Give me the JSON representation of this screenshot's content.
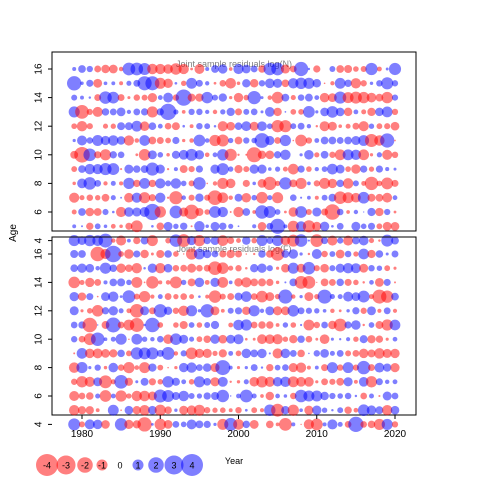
{
  "chart_data": {
    "type": "scatter",
    "subtype": "bubble",
    "shared_ylabel": "Age",
    "shared_xlabel": "Year",
    "x_range": [
      1979,
      2020
    ],
    "x_ticks": [
      1980,
      1990,
      2000,
      2010,
      2020
    ],
    "y_range": [
      4,
      16
    ],
    "y_ticks": [
      4,
      6,
      8,
      10,
      12,
      14,
      16
    ],
    "colors": {
      "positive": "#0000ff",
      "negative": "#ff0000",
      "frame": "#000000",
      "panel_title": "#808080"
    },
    "panels": [
      {
        "title": "Joint sample residuals log(N)",
        "seed": 7
      },
      {
        "title": "Joint sample residuals log(F)",
        "seed": 19
      }
    ],
    "legend": {
      "values": [
        -4,
        -3,
        -2,
        -1,
        0,
        1,
        2,
        3,
        4
      ],
      "labels": [
        "-4",
        "-3",
        "-2",
        "-1",
        "0",
        "1",
        "2",
        "3",
        "4"
      ]
    }
  }
}
